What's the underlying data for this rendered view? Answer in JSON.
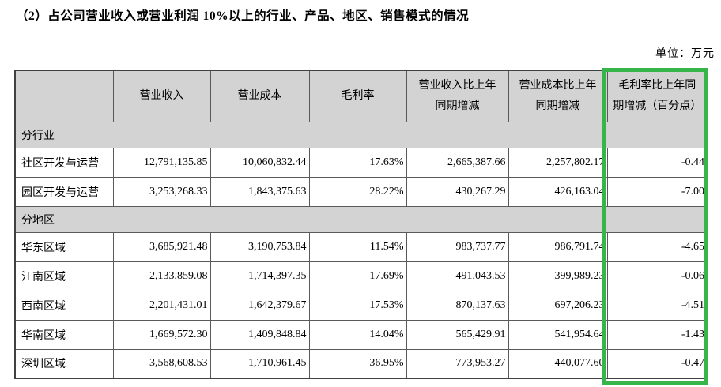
{
  "page": {
    "title": "（2）占公司营业收入或营业利润 10%以上的行业、产品、地区、销售模式的情况",
    "unit_label": "单位：万元"
  },
  "table": {
    "columns": [
      "",
      "营业收入",
      "营业成本",
      "毛利率",
      "营业收入比上年\n同期增减",
      "营业成本比上年\n同期增减",
      "毛利率比上年同\n期增减（百分点）"
    ],
    "sections": [
      {
        "header": "分行业",
        "rows": [
          {
            "label": "社区开发与运营",
            "values": [
              "12,791,135.85",
              "10,060,832.44",
              "17.63%",
              "2,665,387.66",
              "2,257,802.17",
              "-0.44"
            ]
          },
          {
            "label": "园区开发与运营",
            "values": [
              "3,253,268.33",
              "1,843,375.63",
              "28.22%",
              "430,267.29",
              "426,163.04",
              "-7.00"
            ]
          }
        ]
      },
      {
        "header": "分地区",
        "rows": [
          {
            "label": "华东区域",
            "values": [
              "3,685,921.48",
              "3,190,753.84",
              "11.54%",
              "983,737.77",
              "986,791.74",
              "-4.65"
            ]
          },
          {
            "label": "江南区域",
            "values": [
              "2,133,859.08",
              "1,714,397.35",
              "17.69%",
              "491,043.53",
              "399,989.23",
              "-0.06"
            ]
          },
          {
            "label": "西南区域",
            "values": [
              "2,201,431.01",
              "1,642,379.67",
              "17.53%",
              "870,137.63",
              "697,206.23",
              "-4.51"
            ]
          },
          {
            "label": "华南区域",
            "values": [
              "1,669,572.30",
              "1,409,848.84",
              "14.04%",
              "565,429.91",
              "541,954.64",
              "-1.43"
            ]
          },
          {
            "label": "深圳区域",
            "values": [
              "3,568,608.53",
              "1,710,961.45",
              "36.95%",
              "773,953.27",
              "440,077.60",
              "-0.47"
            ]
          }
        ]
      }
    ],
    "highlight": {
      "column": "毛利率比上年同期增减（百分点）",
      "color": "#35b54a"
    }
  }
}
